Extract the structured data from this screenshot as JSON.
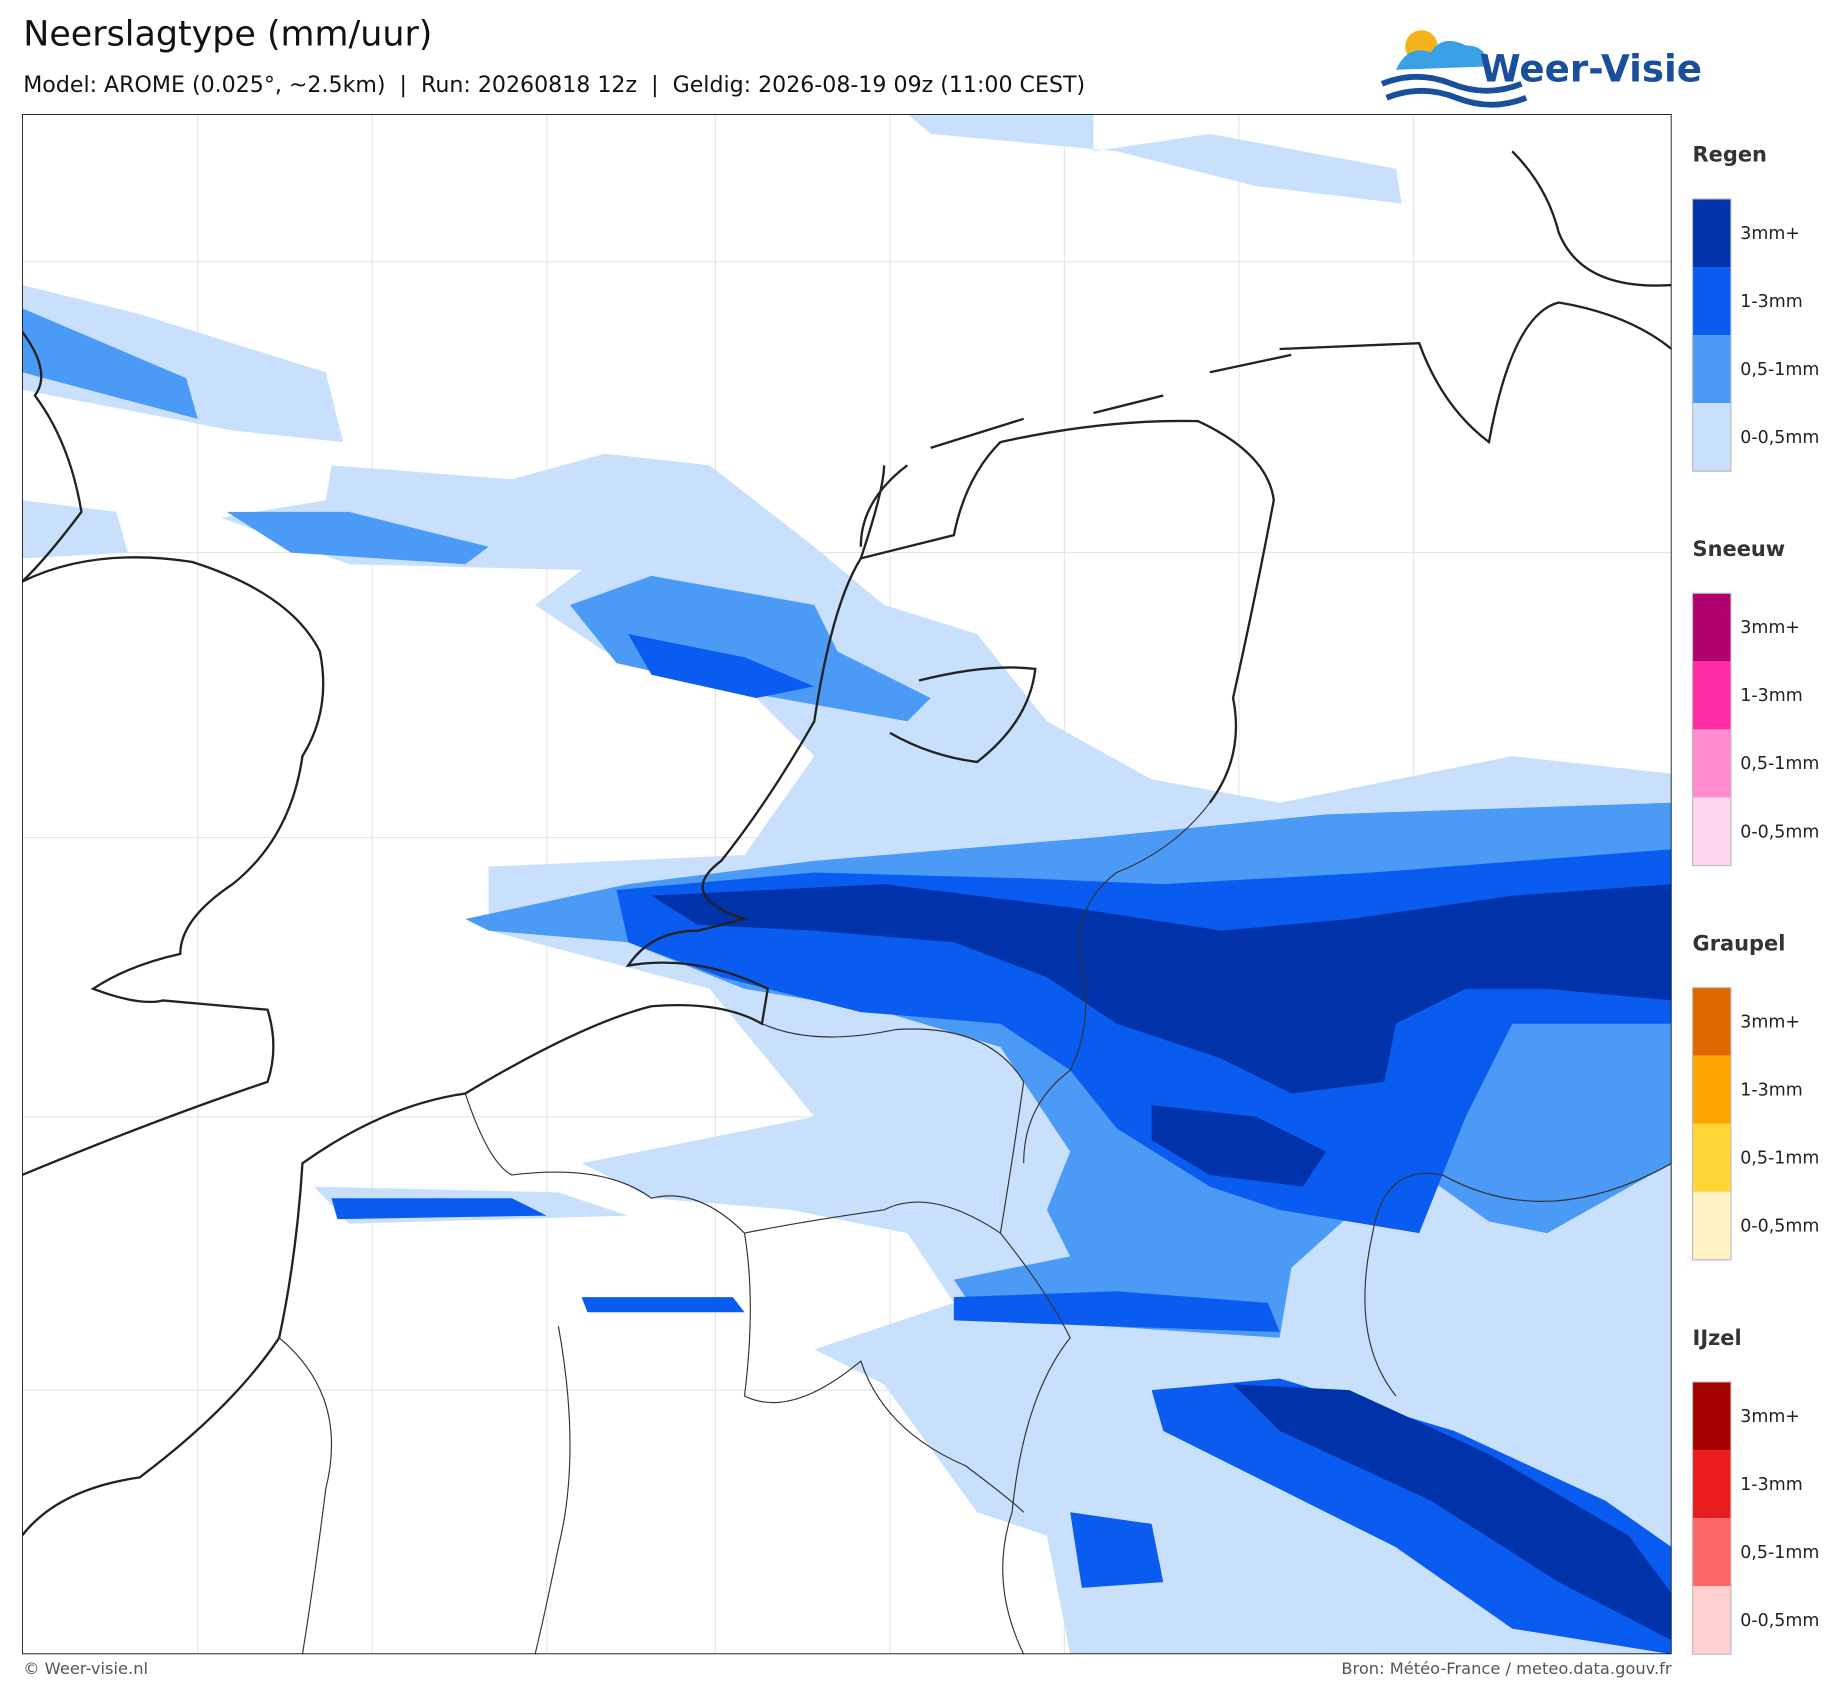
{
  "header": {
    "title": "Neerslagtype (mm/uur)",
    "subtitle": "Model: AROME (0.025°, ~2.5km)  |  Run: 20260818 12z  |  Geldig: 2026-08-19 09z (11:00 CEST)",
    "logo": "Weer-Visie"
  },
  "legend": [
    {
      "title": "Regen",
      "items": [
        {
          "label": "3mm+",
          "color": "#0033aa"
        },
        {
          "label": "1-3mm",
          "color": "#0a5cf0"
        },
        {
          "label": "0,5-1mm",
          "color": "#4b9af5"
        },
        {
          "label": "0-0,5mm",
          "color": "#c8e0fb"
        }
      ]
    },
    {
      "title": "Sneeuw",
      "items": [
        {
          "label": "3mm+",
          "color": "#b0006e"
        },
        {
          "label": "1-3mm",
          "color": "#ff2aa5"
        },
        {
          "label": "0,5-1mm",
          "color": "#ff8ccc"
        },
        {
          "label": "0-0,5mm",
          "color": "#ffd6ee"
        }
      ]
    },
    {
      "title": "Graupel",
      "items": [
        {
          "label": "3mm+",
          "color": "#e06800"
        },
        {
          "label": "1-3mm",
          "color": "#ffa500"
        },
        {
          "label": "0,5-1mm",
          "color": "#ffd633"
        },
        {
          "label": "0-0,5mm",
          "color": "#fff3c4"
        }
      ]
    },
    {
      "title": "IJzel",
      "items": [
        {
          "label": "3mm+",
          "color": "#a50000"
        },
        {
          "label": "1-3mm",
          "color": "#e81c1c"
        },
        {
          "label": "0,5-1mm",
          "color": "#ff6666"
        },
        {
          "label": "0-0,5mm",
          "color": "#ffd0d0"
        }
      ]
    }
  ],
  "footer": {
    "left": "© Weer-visie.nl",
    "right": "Bron: Météo-France / meteo.data.gouv.fr"
  }
}
